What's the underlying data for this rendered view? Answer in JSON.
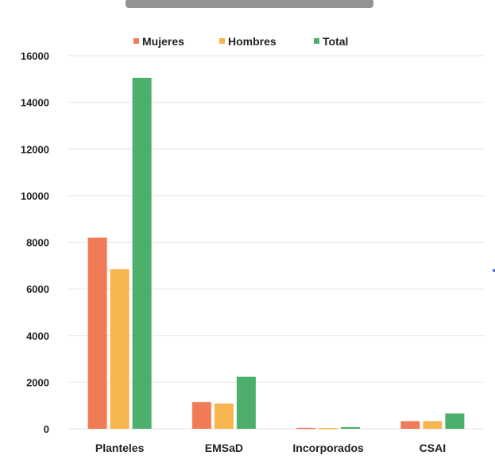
{
  "chart_data": {
    "type": "bar",
    "title": "",
    "xlabel": "",
    "ylabel": "",
    "categories": [
      "Planteles",
      "EMSaD",
      "Incorporados",
      "CSAI"
    ],
    "series": [
      {
        "name": "Mujeres",
        "color": "#f07b56",
        "values": [
          8200,
          1150,
          40,
          330
        ]
      },
      {
        "name": "Hombres",
        "color": "#f7b54f",
        "values": [
          6850,
          1080,
          30,
          330
        ]
      },
      {
        "name": "Total",
        "color": "#4caf6b",
        "values": [
          15050,
          2230,
          70,
          660
        ]
      }
    ],
    "ylim": [
      0,
      16000
    ],
    "yticks": [
      0,
      2000,
      4000,
      6000,
      8000,
      10000,
      12000,
      14000,
      16000
    ],
    "grid": true,
    "legend_position": "top"
  }
}
